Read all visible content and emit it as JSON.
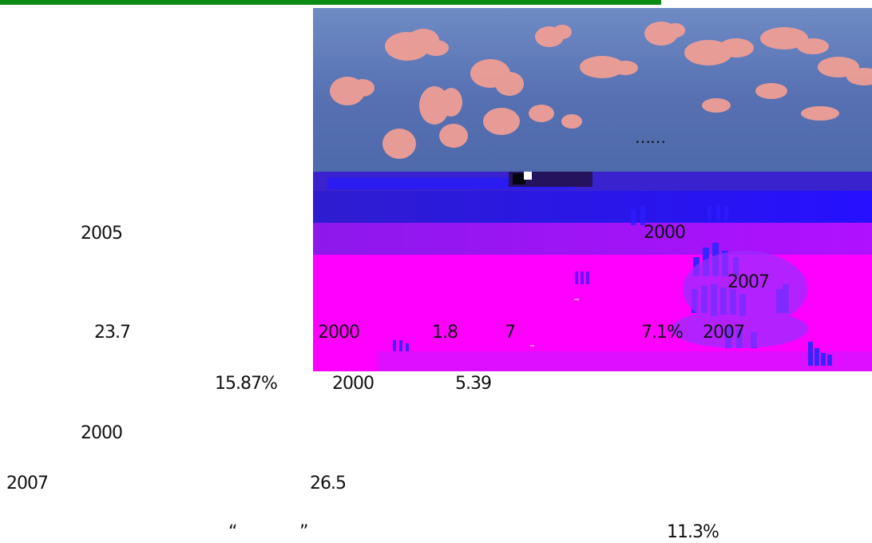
{
  "document": {
    "top_rule_color": "#0c8a16",
    "image_overlay": {
      "ellipsis": "……",
      "year_a": "2000",
      "year_b": "2007",
      "year_c": "2007",
      "value_a": "1.8",
      "value_b": "7",
      "value_c": "7.1%"
    },
    "left_column": {
      "year_2005": "2005",
      "value_23_7": "23.7",
      "value_15_87": "15.87%",
      "year_2000": "2000"
    },
    "body_lines": {
      "line_1_year": "2000",
      "line_1_value": "5.39",
      "line_2_year": "2007",
      "line_2_value": "26.5",
      "open_quote": "“",
      "close_quote": "”",
      "line_3_value": "11.3%"
    }
  }
}
